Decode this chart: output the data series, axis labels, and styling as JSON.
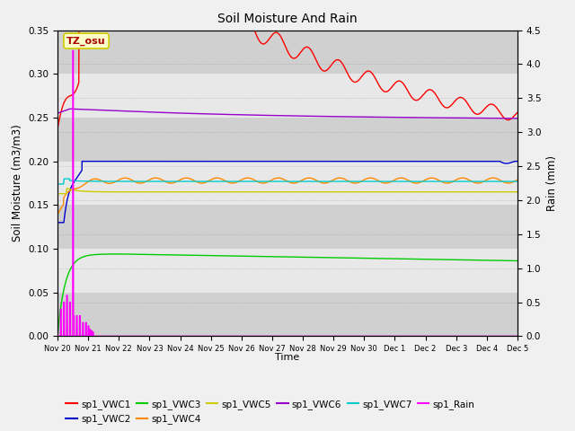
{
  "title": "Soil Moisture And Rain",
  "xlabel": "Time",
  "ylabel_left": "Soil Moisture (m3/m3)",
  "ylabel_right": "Rain (mm)",
  "ylim_left": [
    0,
    0.35
  ],
  "ylim_right": [
    0,
    4.5
  ],
  "yticks_left": [
    0.0,
    0.05,
    0.1,
    0.15,
    0.2,
    0.25,
    0.3,
    0.35
  ],
  "yticks_right": [
    0.0,
    0.5,
    1.0,
    1.5,
    2.0,
    2.5,
    3.0,
    3.5,
    4.0,
    4.5
  ],
  "annotation_text": "TZ_osu",
  "annotation_bg": "#ffffcc",
  "annotation_border": "#cccc00",
  "colors": {
    "VWC1": "#ff0000",
    "VWC2": "#0000cc",
    "VWC3": "#00cc00",
    "VWC4": "#ff8800",
    "VWC5": "#cccc00",
    "VWC6": "#9900cc",
    "VWC7": "#00cccc",
    "Rain": "#ff00ff"
  },
  "legend_labels": [
    "sp1_VWC1",
    "sp1_VWC2",
    "sp1_VWC3",
    "sp1_VWC4",
    "sp1_VWC5",
    "sp1_VWC6",
    "sp1_VWC7",
    "sp1_Rain"
  ],
  "n_days": 15,
  "fig_bg": "#f0f0f0",
  "plot_bg": "#e8e8e8",
  "band_colors": [
    "#d0d0d0",
    "#e8e8e8"
  ]
}
